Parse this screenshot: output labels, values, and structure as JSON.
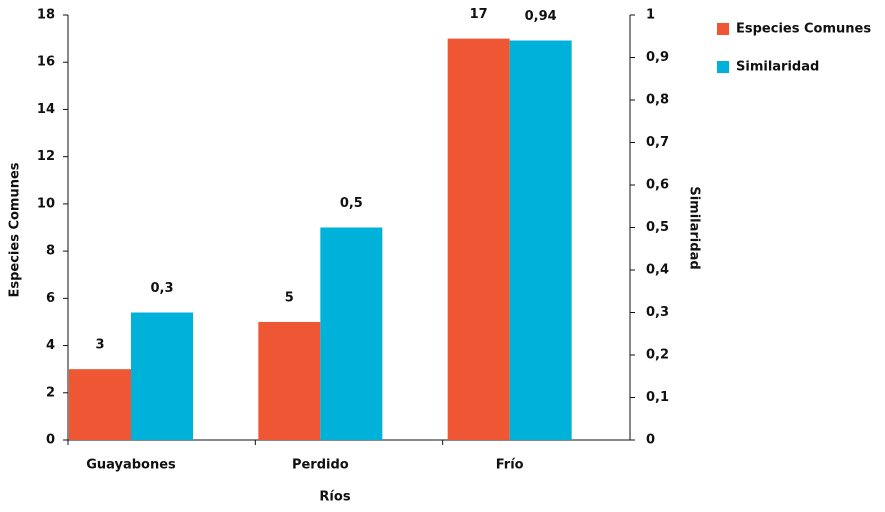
{
  "chart_data": {
    "type": "bar",
    "categories": [
      "Guayabones",
      "Perdido",
      "Frío"
    ],
    "series": [
      {
        "name": "Especies Comunes",
        "color": "#ef5634",
        "values": [
          3,
          5,
          17
        ]
      },
      {
        "name": "Similaridad",
        "color": "#00b1da",
        "axis": "y2",
        "values": [
          0.3,
          0.5,
          0.94
        ],
        "value_labels": [
          "0,3",
          "0,5",
          "0,94"
        ]
      }
    ],
    "xlabel": "Ríos",
    "ylabel": "Especies Comunes",
    "y2label": "Similaridad",
    "ylim": [
      0,
      18
    ],
    "yticks": [
      0,
      2,
      4,
      6,
      8,
      10,
      12,
      14,
      16,
      18
    ],
    "y2lim": [
      0,
      1
    ],
    "y2ticks": [
      0,
      {
        "value": 0.1,
        "label": "0,1"
      },
      {
        "value": 0.2,
        "label": "0,2"
      },
      {
        "value": 0.3,
        "label": "0,3"
      },
      {
        "value": 0.4,
        "label": "0,4"
      },
      {
        "value": 0.5,
        "label": "0,5"
      },
      {
        "value": 0.6,
        "label": "0,6"
      },
      {
        "value": 0.7,
        "label": "0,7"
      },
      {
        "value": 0.8,
        "label": "0,8"
      },
      {
        "value": 0.9,
        "label": "0,9"
      },
      1
    ],
    "legend": "right"
  }
}
